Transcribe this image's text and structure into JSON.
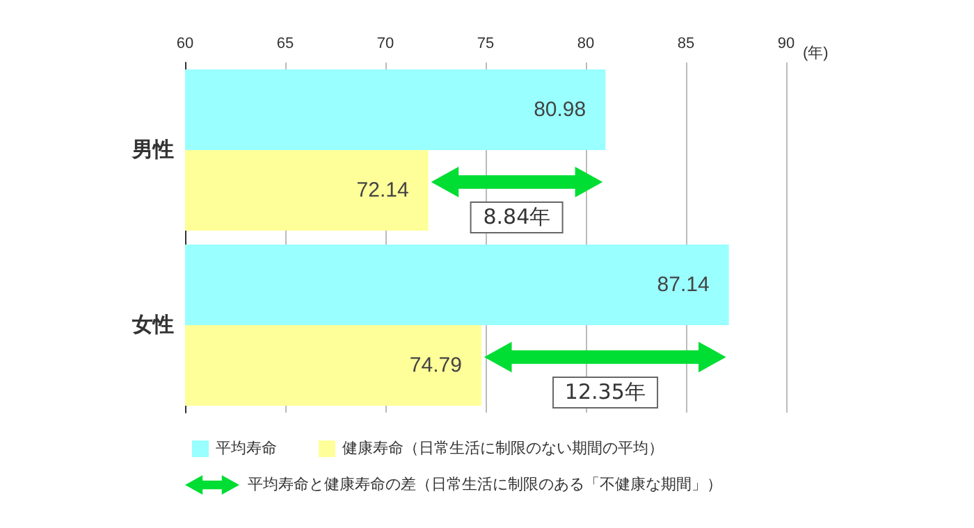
{
  "chart_data": {
    "type": "bar",
    "orientation": "horizontal",
    "categories": [
      "男性",
      "女性"
    ],
    "series": [
      {
        "name": "平均寿命",
        "color": "#99ffff",
        "values": [
          80.98,
          87.14
        ]
      },
      {
        "name": "健康寿命（日常生活に制限のない期間の平均）",
        "color": "#ffff99",
        "values": [
          72.14,
          74.79
        ]
      }
    ],
    "xlabel": "(年)",
    "xlim": [
      60,
      90
    ],
    "xticks": [
      60,
      65,
      70,
      75,
      80,
      85,
      90
    ],
    "grid": "x",
    "legend": "bottom",
    "data_labels": true,
    "annotations": [
      "8.84年",
      "12.35年",
      "平均寿命と健康寿命の差（日常生活に制限のある「不健康な期間」）"
    ]
  }
}
